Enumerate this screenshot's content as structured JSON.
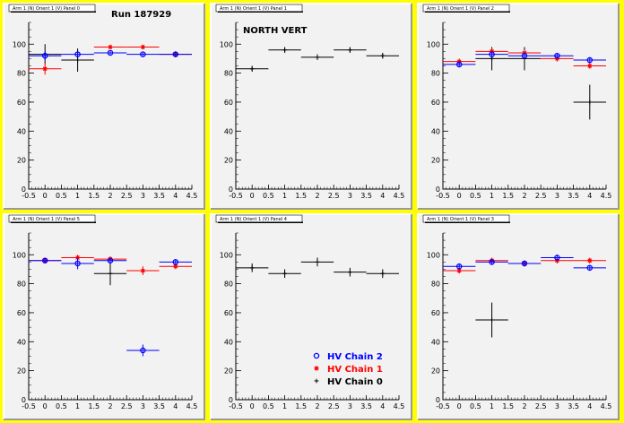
{
  "panels": [
    {
      "title": "Arm 1 (N) Orient 1 (V) Panel 0",
      "label": "Run 187929"
    },
    {
      "title": "Arm 1 (N) Orient 1 (V) Panel 1",
      "label": "NORTH VERT"
    },
    {
      "title": "Arm 1 (N) Orient 1 (V) Panel 2",
      "label": ""
    },
    {
      "title": "Arm 1 (N) Orient 1 (V) Panel 5",
      "label": ""
    },
    {
      "title": "Arm 1 (N) Orient 1 (V) Panel 4",
      "label": ""
    },
    {
      "title": "Arm 1 (N) Orient 1 (V) Panel 3",
      "label": ""
    }
  ],
  "legend": [
    {
      "label": "HV Chain 2",
      "color": "#0000ff",
      "marker": "circle"
    },
    {
      "label": "HV Chain 1",
      "color": "#ff0000",
      "marker": "star"
    },
    {
      "label": "HV Chain 0",
      "color": "#000000",
      "marker": "plus"
    }
  ],
  "colors": {
    "background": "#ffff00",
    "frame": "#f2f2f2",
    "chain0": "#000000",
    "chain1": "#ff0000",
    "chain2": "#0000ff"
  },
  "chart_data": [
    {
      "type": "scatter",
      "title": "Arm 1 (N) Orient 1 (V) Panel 0",
      "annotation": "Run 187929",
      "xlim": [
        -0.5,
        4.5
      ],
      "ylim": [
        0,
        115
      ],
      "xticks": [
        "-0.5",
        "0",
        "0.5",
        "1",
        "1.5",
        "2",
        "2.5",
        "3",
        "3.5",
        "4",
        "4.5"
      ],
      "yticks": [
        "0",
        "20",
        "40",
        "60",
        "80",
        "100"
      ],
      "series": [
        {
          "name": "HV Chain 0",
          "x": [
            0,
            1
          ],
          "y": [
            93,
            89
          ],
          "yerr": [
            7,
            8
          ]
        },
        {
          "name": "HV Chain 1",
          "x": [
            0,
            2,
            3,
            4
          ],
          "y": [
            83,
            98,
            98,
            93
          ],
          "yerr": [
            4,
            1.5,
            1.5,
            2
          ]
        },
        {
          "name": "HV Chain 2",
          "x": [
            0,
            1,
            2,
            3,
            4
          ],
          "y": [
            92,
            93,
            94,
            93,
            93
          ],
          "yerr": [
            3,
            2,
            1,
            1,
            2
          ]
        }
      ]
    },
    {
      "type": "scatter",
      "title": "Arm 1 (N) Orient 1 (V) Panel 1",
      "annotation": "NORTH VERT",
      "xlim": [
        -0.5,
        4.5
      ],
      "ylim": [
        0,
        115
      ],
      "xticks": [
        "-0.5",
        "0",
        "0.5",
        "1",
        "1.5",
        "2",
        "2.5",
        "3",
        "3.5",
        "4",
        "4.5"
      ],
      "yticks": [
        "0",
        "20",
        "40",
        "60",
        "80",
        "100"
      ],
      "series": [
        {
          "name": "HV Chain 0",
          "x": [
            0,
            1,
            2,
            3,
            4
          ],
          "y": [
            83,
            96,
            91,
            96,
            92
          ],
          "yerr": [
            2,
            2,
            2,
            2,
            2
          ]
        },
        {
          "name": "HV Chain 1",
          "x": [],
          "y": [],
          "yerr": []
        },
        {
          "name": "HV Chain 2",
          "x": [],
          "y": [],
          "yerr": []
        }
      ]
    },
    {
      "type": "scatter",
      "title": "Arm 1 (N) Orient 1 (V) Panel 2",
      "annotation": "",
      "xlim": [
        -0.5,
        4.5
      ],
      "ylim": [
        0,
        115
      ],
      "xticks": [
        "-0.5",
        "0",
        "0.5",
        "1",
        "1.5",
        "2",
        "2.5",
        "3",
        "3.5",
        "4",
        "4.5"
      ],
      "yticks": [
        "0",
        "20",
        "40",
        "60",
        "80",
        "100"
      ],
      "series": [
        {
          "name": "HV Chain 0",
          "x": [
            1,
            2,
            4
          ],
          "y": [
            90,
            90,
            60
          ],
          "yerr": [
            8,
            8,
            12
          ]
        },
        {
          "name": "HV Chain 1",
          "x": [
            0,
            1,
            2,
            3,
            4
          ],
          "y": [
            88,
            95,
            94,
            90,
            85
          ],
          "yerr": [
            2,
            2,
            2,
            2,
            2
          ]
        },
        {
          "name": "HV Chain 2",
          "x": [
            0,
            1,
            2,
            3,
            4
          ],
          "y": [
            86,
            93,
            92,
            92,
            89
          ],
          "yerr": [
            2,
            2,
            2,
            2,
            2
          ]
        }
      ]
    },
    {
      "type": "scatter",
      "title": "Arm 1 (N) Orient 1 (V) Panel 5",
      "annotation": "",
      "xlim": [
        -0.5,
        4.5
      ],
      "ylim": [
        0,
        115
      ],
      "xticks": [
        "-0.5",
        "0",
        "0.5",
        "1",
        "1.5",
        "2",
        "2.5",
        "3",
        "3.5",
        "4",
        "4.5"
      ],
      "yticks": [
        "0",
        "20",
        "40",
        "60",
        "80",
        "100"
      ],
      "series": [
        {
          "name": "HV Chain 0",
          "x": [
            2
          ],
          "y": [
            87
          ],
          "yerr": [
            8
          ]
        },
        {
          "name": "HV Chain 1",
          "x": [
            0,
            1,
            2,
            3,
            4
          ],
          "y": [
            96,
            98,
            97,
            89,
            92
          ],
          "yerr": [
            2,
            2,
            2,
            3,
            2
          ]
        },
        {
          "name": "HV Chain 2",
          "x": [
            0,
            1,
            2,
            3,
            4
          ],
          "y": [
            96,
            94,
            96,
            34,
            95
          ],
          "yerr": [
            2,
            4,
            2,
            4,
            2
          ]
        }
      ]
    },
    {
      "type": "scatter",
      "title": "Arm 1 (N) Orient 1 (V) Panel 4",
      "annotation": "",
      "xlim": [
        -0.5,
        4.5
      ],
      "ylim": [
        0,
        115
      ],
      "xticks": [
        "-0.5",
        "0",
        "0.5",
        "1",
        "1.5",
        "2",
        "2.5",
        "3",
        "3.5",
        "4",
        "4.5"
      ],
      "yticks": [
        "0",
        "20",
        "40",
        "60",
        "80",
        "100"
      ],
      "series": [
        {
          "name": "HV Chain 0",
          "x": [
            0,
            1,
            2,
            3,
            4
          ],
          "y": [
            91,
            87,
            95,
            88,
            87
          ],
          "yerr": [
            3,
            3,
            3,
            3,
            3
          ]
        },
        {
          "name": "HV Chain 1",
          "x": [],
          "y": [],
          "yerr": []
        },
        {
          "name": "HV Chain 2",
          "x": [],
          "y": [],
          "yerr": []
        }
      ]
    },
    {
      "type": "scatter",
      "title": "Arm 1 (N) Orient 1 (V) Panel 3",
      "annotation": "",
      "xlim": [
        -0.5,
        4.5
      ],
      "ylim": [
        0,
        115
      ],
      "xticks": [
        "-0.5",
        "0",
        "0.5",
        "1",
        "1.5",
        "2",
        "2.5",
        "3",
        "3.5",
        "4",
        "4.5"
      ],
      "yticks": [
        "0",
        "20",
        "40",
        "60",
        "80",
        "100"
      ],
      "series": [
        {
          "name": "HV Chain 0",
          "x": [
            1
          ],
          "y": [
            55
          ],
          "yerr": [
            12
          ]
        },
        {
          "name": "HV Chain 1",
          "x": [
            0,
            1,
            2,
            3,
            4
          ],
          "y": [
            89,
            96,
            94,
            96,
            96
          ],
          "yerr": [
            2,
            2,
            2,
            2,
            2
          ]
        },
        {
          "name": "HV Chain 2",
          "x": [
            0,
            1,
            2,
            3,
            4
          ],
          "y": [
            92,
            95,
            94,
            98,
            91
          ],
          "yerr": [
            2,
            2,
            2,
            2,
            2
          ]
        }
      ]
    }
  ]
}
